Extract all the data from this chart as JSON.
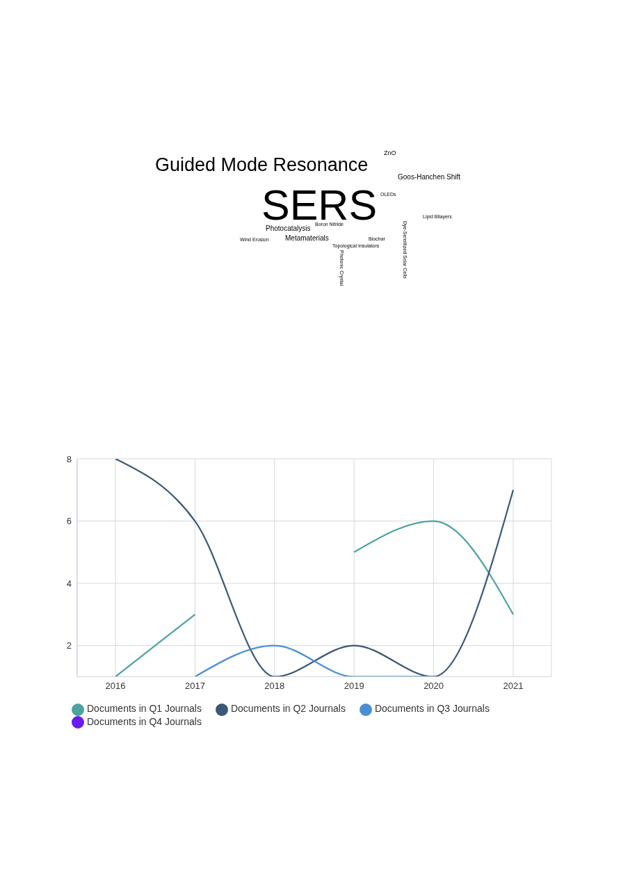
{
  "chart_data": [
    {
      "type": "other",
      "annotations": [
        "Guided Mode Resonance",
        "ZnO",
        "Goos-Hanchen Shift",
        "SERS",
        "OLEDs",
        "Lipid Bilayers",
        "Boron Nitride",
        "Photocatalysis",
        "Wind Erosion",
        "Metamaterials",
        "Biochar",
        "Topological Insulators",
        "Photonic Crystal",
        "Dye-Sensitized Solar Cells"
      ]
    },
    {
      "type": "line",
      "categories": [
        "2016",
        "2017",
        "2018",
        "2019",
        "2020",
        "2021"
      ],
      "series": [
        {
          "name": "Documents in Q1 Journals",
          "color": "#4aa3a0",
          "values": [
            1,
            3,
            null,
            5,
            6,
            3
          ]
        },
        {
          "name": "Documents in Q2 Journals",
          "color": "#3b5878",
          "values": [
            8,
            6,
            1,
            2,
            1,
            7
          ]
        },
        {
          "name": "Documents in Q3 Journals",
          "color": "#4a8fd6",
          "values": [
            null,
            1,
            2,
            1,
            1,
            null
          ]
        },
        {
          "name": "Documents in Q4 Journals",
          "color": "#6a1bf5",
          "values": [
            null,
            null,
            null,
            null,
            null,
            null
          ]
        }
      ],
      "ylim": [
        1,
        8
      ],
      "yticks": [
        2,
        4,
        6,
        8
      ],
      "grid": true,
      "legend": "bottom",
      "marker": "none"
    }
  ]
}
